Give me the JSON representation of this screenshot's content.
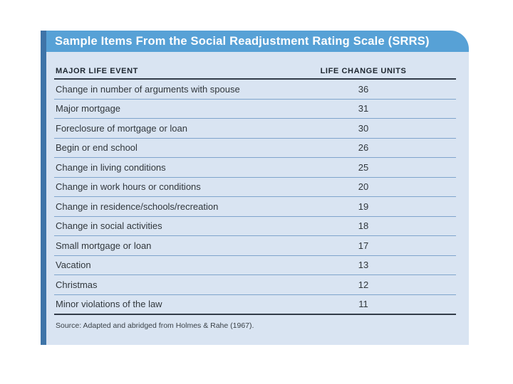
{
  "table": {
    "title": "Sample Items From the Social Readjustment Rating Scale (SRRS)",
    "columns": [
      "MAJOR LIFE EVENT",
      "LIFE CHANGE UNITS"
    ],
    "rows": [
      {
        "event": "Change in number of arguments with spouse",
        "units": "36"
      },
      {
        "event": "Major mortgage",
        "units": "31"
      },
      {
        "event": "Foreclosure of mortgage or loan",
        "units": "30"
      },
      {
        "event": "Begin or end school",
        "units": "26"
      },
      {
        "event": "Change in living conditions",
        "units": "25"
      },
      {
        "event": "Change in work hours or conditions",
        "units": "20"
      },
      {
        "event": "Change in residence/schools/recreation",
        "units": "19"
      },
      {
        "event": "Change in social activities",
        "units": "18"
      },
      {
        "event": "Small mortgage or loan",
        "units": "17"
      },
      {
        "event": "Vacation",
        "units": "13"
      },
      {
        "event": "Christmas",
        "units": "12"
      },
      {
        "event": "Minor violations of the law",
        "units": "11"
      }
    ],
    "source": "Source: Adapted and abridged from Holmes & Rahe (1967)."
  },
  "colors": {
    "header_bar": "#57a1d6",
    "body_background": "#d9e4f2",
    "left_accent_strip": "#3f74a8",
    "row_separator": "#7fa4cc",
    "dark_rule": "#323c49",
    "title_text": "#ffffff",
    "body_text": "#31373c"
  }
}
